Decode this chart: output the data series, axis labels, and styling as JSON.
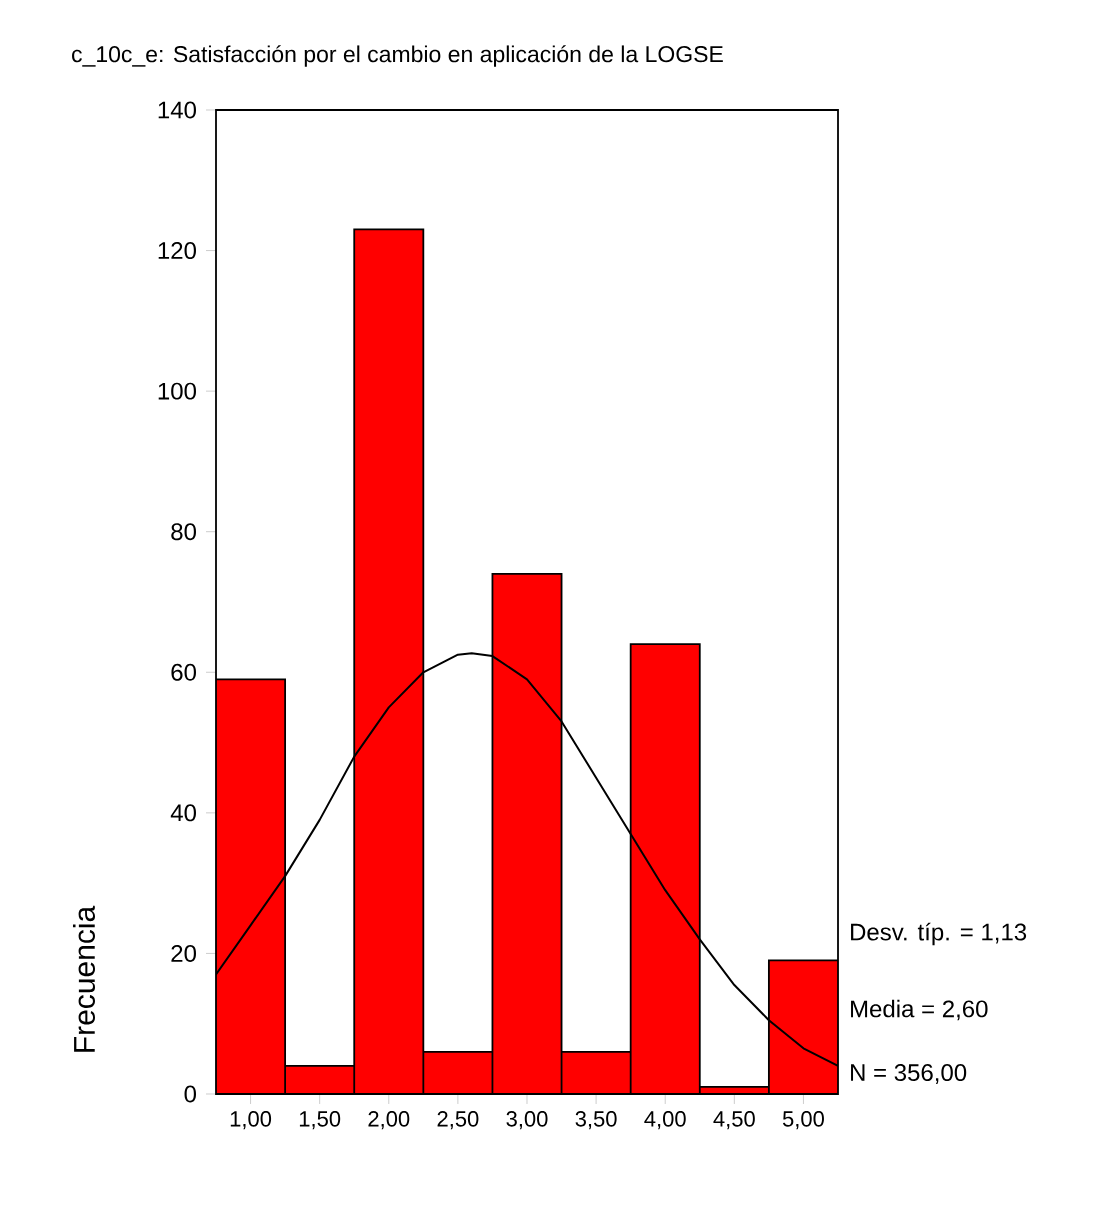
{
  "chart_data": {
    "type": "histogram",
    "title": "c_10c_e: Satisfacción por el cambio en aplicación de la LOGSE",
    "ylabel": "Frecuencia",
    "bins": [
      0.75,
      1.25,
      1.75,
      2.25,
      2.75,
      3.25,
      3.75,
      4.25,
      4.75,
      5.25
    ],
    "values": [
      59,
      4,
      123,
      6,
      74,
      6,
      64,
      1,
      19
    ],
    "color": "#ff0000",
    "series": [
      {
        "type": "line",
        "color": "#000000",
        "x": [
          0.75,
          1.0,
          1.25,
          1.5,
          1.75,
          2.0,
          2.25,
          2.5,
          2.6,
          2.75,
          3.0,
          3.25,
          3.5,
          3.75,
          4.0,
          4.25,
          4.5,
          4.75,
          5.0,
          5.25
        ],
        "values": [
          17,
          24,
          31,
          39,
          48,
          55,
          60,
          62.5,
          62.7,
          62.3,
          59,
          53,
          45,
          37,
          29,
          22,
          15.5,
          10.5,
          6.5,
          4
        ]
      }
    ],
    "xlim": [
      0.75,
      5.25
    ],
    "ylim": [
      0,
      140
    ],
    "xticks": [
      {
        "value": 1,
        "label": "1,00"
      },
      {
        "value": 1.5,
        "label": "1,50"
      },
      {
        "value": 2,
        "label": "2,00"
      },
      {
        "value": 2.5,
        "label": "2,50"
      },
      {
        "value": 3,
        "label": "3,00"
      },
      {
        "value": 3.5,
        "label": "3,50"
      },
      {
        "value": 4,
        "label": "4,00"
      },
      {
        "value": 4.5,
        "label": "4,50"
      },
      {
        "value": 5,
        "label": "5,00"
      }
    ],
    "yticks": [
      0,
      20,
      40,
      60,
      80,
      100,
      120,
      140
    ],
    "annotations": [
      "Desv. típ. = 1,13",
      "Media = 2,60",
      "N = 356,00"
    ]
  }
}
